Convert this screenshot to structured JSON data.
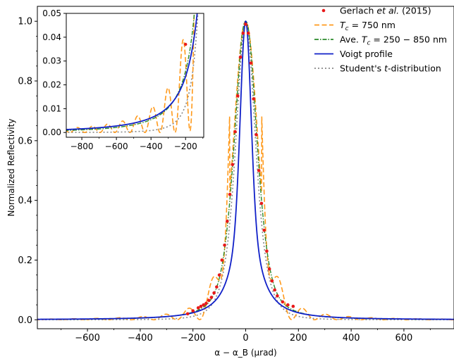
{
  "chart_data": [
    {
      "type": "line",
      "panel": "main",
      "xlabel": "α − α_B (μrad)",
      "ylabel": "Normalized Reflectivity",
      "xlim": [
        -790,
        790
      ],
      "ylim": [
        -0.03,
        1.05
      ],
      "xticks": [
        -600,
        -400,
        -200,
        0,
        200,
        400,
        600
      ],
      "xtick_labels": [
        "−600",
        "−400",
        "−200",
        "0",
        "200",
        "400",
        "600"
      ],
      "yticks": [
        0.0,
        0.2,
        0.4,
        0.6,
        0.8,
        1.0
      ],
      "ytick_labels": [
        "0.0",
        "0.2",
        "0.4",
        "0.6",
        "0.8",
        "1.0"
      ],
      "grid": false,
      "legend_position": "top-right",
      "series": [
        {
          "name": "Gerlach et al. (2015)",
          "style": "markers",
          "color": "#e8191a",
          "x": [
            -220,
            -200,
            -180,
            -170,
            -160,
            -150,
            -140,
            -130,
            -120,
            -110,
            -100,
            -90,
            -80,
            -70,
            -60,
            -50,
            -40,
            -30,
            -20,
            -10,
            0,
            10,
            20,
            30,
            40,
            50,
            60,
            70,
            80,
            90,
            100,
            110,
            120,
            140,
            160,
            180
          ],
          "y": [
            0.02,
            0.03,
            0.04,
            0.045,
            0.05,
            0.055,
            0.065,
            0.075,
            0.09,
            0.11,
            0.15,
            0.2,
            0.25,
            0.33,
            0.42,
            0.52,
            0.63,
            0.75,
            0.88,
            0.96,
            0.99,
            0.96,
            0.86,
            0.74,
            0.62,
            0.5,
            0.39,
            0.3,
            0.23,
            0.17,
            0.13,
            0.1,
            0.08,
            0.06,
            0.05,
            0.045
          ]
        },
        {
          "name": "T_c = 750 nm",
          "style": "dashed",
          "color": "#ff9a1c"
        },
        {
          "name": "Ave. T_c = 250 − 850 nm",
          "style": "dashdot",
          "color": "#2a8a2a"
        },
        {
          "name": "Voigt profile",
          "style": "solid",
          "color": "#1020c8"
        },
        {
          "name": "Student's t-distribution",
          "style": "dotted",
          "color": "#888888"
        }
      ]
    },
    {
      "type": "line",
      "panel": "inset",
      "xlim": [
        -890,
        -95
      ],
      "ylim": [
        -0.002,
        0.05
      ],
      "xticks": [
        -800,
        -600,
        -400,
        -200
      ],
      "xtick_labels": [
        "−800",
        "−600",
        "−400",
        "−200"
      ],
      "yticks": [
        0.0,
        0.01,
        0.02,
        0.03,
        0.04,
        0.05
      ],
      "ytick_labels": [
        "0.00",
        "0.01",
        "0.02",
        "0.03",
        "0.04",
        "0.05"
      ],
      "marker_points": {
        "x": [
          -200
        ],
        "y": [
          0.037
        ]
      }
    }
  ],
  "legend": {
    "items": [
      {
        "pre": "Gerlach ",
        "em": "et al.",
        "post": "  (2015)"
      },
      {
        "pre": "",
        "em": "T",
        "sub": "c",
        "post": " = 750 nm"
      },
      {
        "pre": "Ave. ",
        "em": "T",
        "sub": "c",
        "post": " = 250 − 850 nm"
      },
      {
        "pre": "Voigt profile",
        "em": "",
        "post": ""
      },
      {
        "pre": "Student's ",
        "em": "t",
        "post": "-distribution"
      }
    ]
  }
}
